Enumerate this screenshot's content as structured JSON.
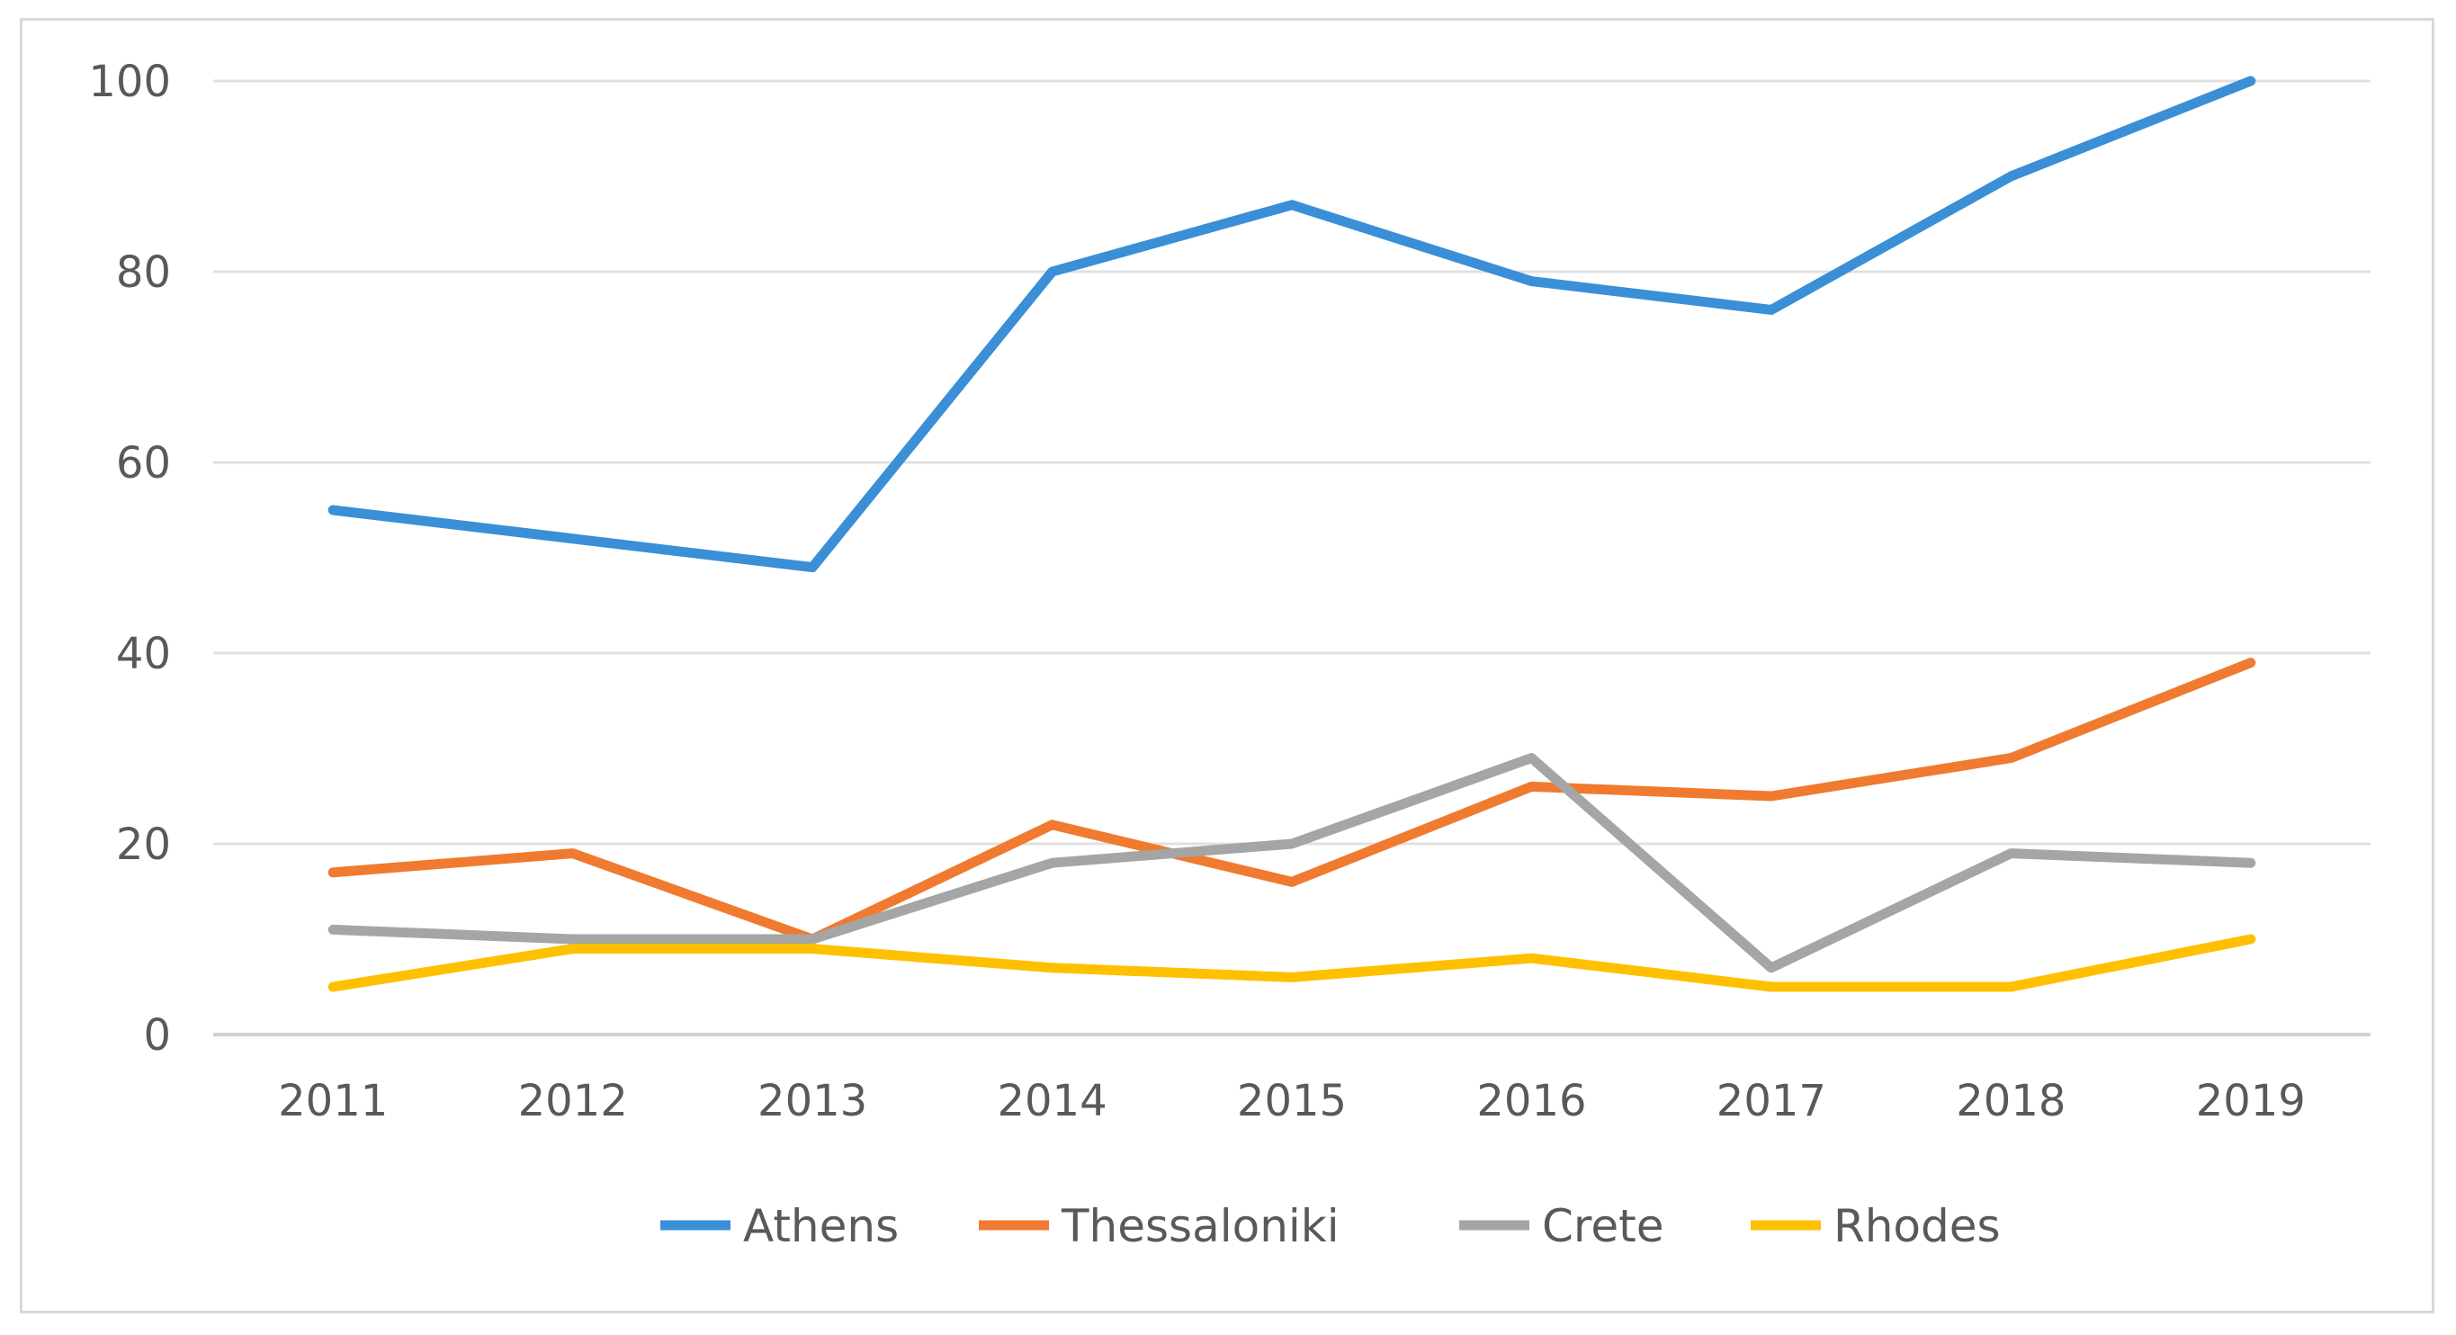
{
  "chart_data": {
    "type": "line",
    "title": "",
    "xlabel": "",
    "ylabel": "",
    "categories": [
      "2011",
      "2012",
      "2013",
      "2014",
      "2015",
      "2016",
      "2017",
      "2018",
      "2019"
    ],
    "ylim": [
      0,
      100
    ],
    "yticks": [
      0,
      20,
      40,
      60,
      80,
      100
    ],
    "grid": true,
    "legend_position": "bottom",
    "series": [
      {
        "name": "Athens",
        "color": "#3A8FD6",
        "values": [
          55,
          52,
          49,
          80,
          87,
          79,
          76,
          90,
          100
        ]
      },
      {
        "name": "Thessaloniki",
        "color": "#F07A2F",
        "values": [
          17,
          19,
          10,
          22,
          16,
          26,
          25,
          29,
          39
        ]
      },
      {
        "name": "Crete",
        "color": "#A5A5A5",
        "values": [
          11,
          10,
          10,
          18,
          20,
          29,
          7,
          19,
          18
        ]
      },
      {
        "name": "Rhodes",
        "color": "#FFC000",
        "values": [
          5,
          9,
          9,
          7,
          6,
          8,
          5,
          5,
          10
        ]
      }
    ]
  }
}
